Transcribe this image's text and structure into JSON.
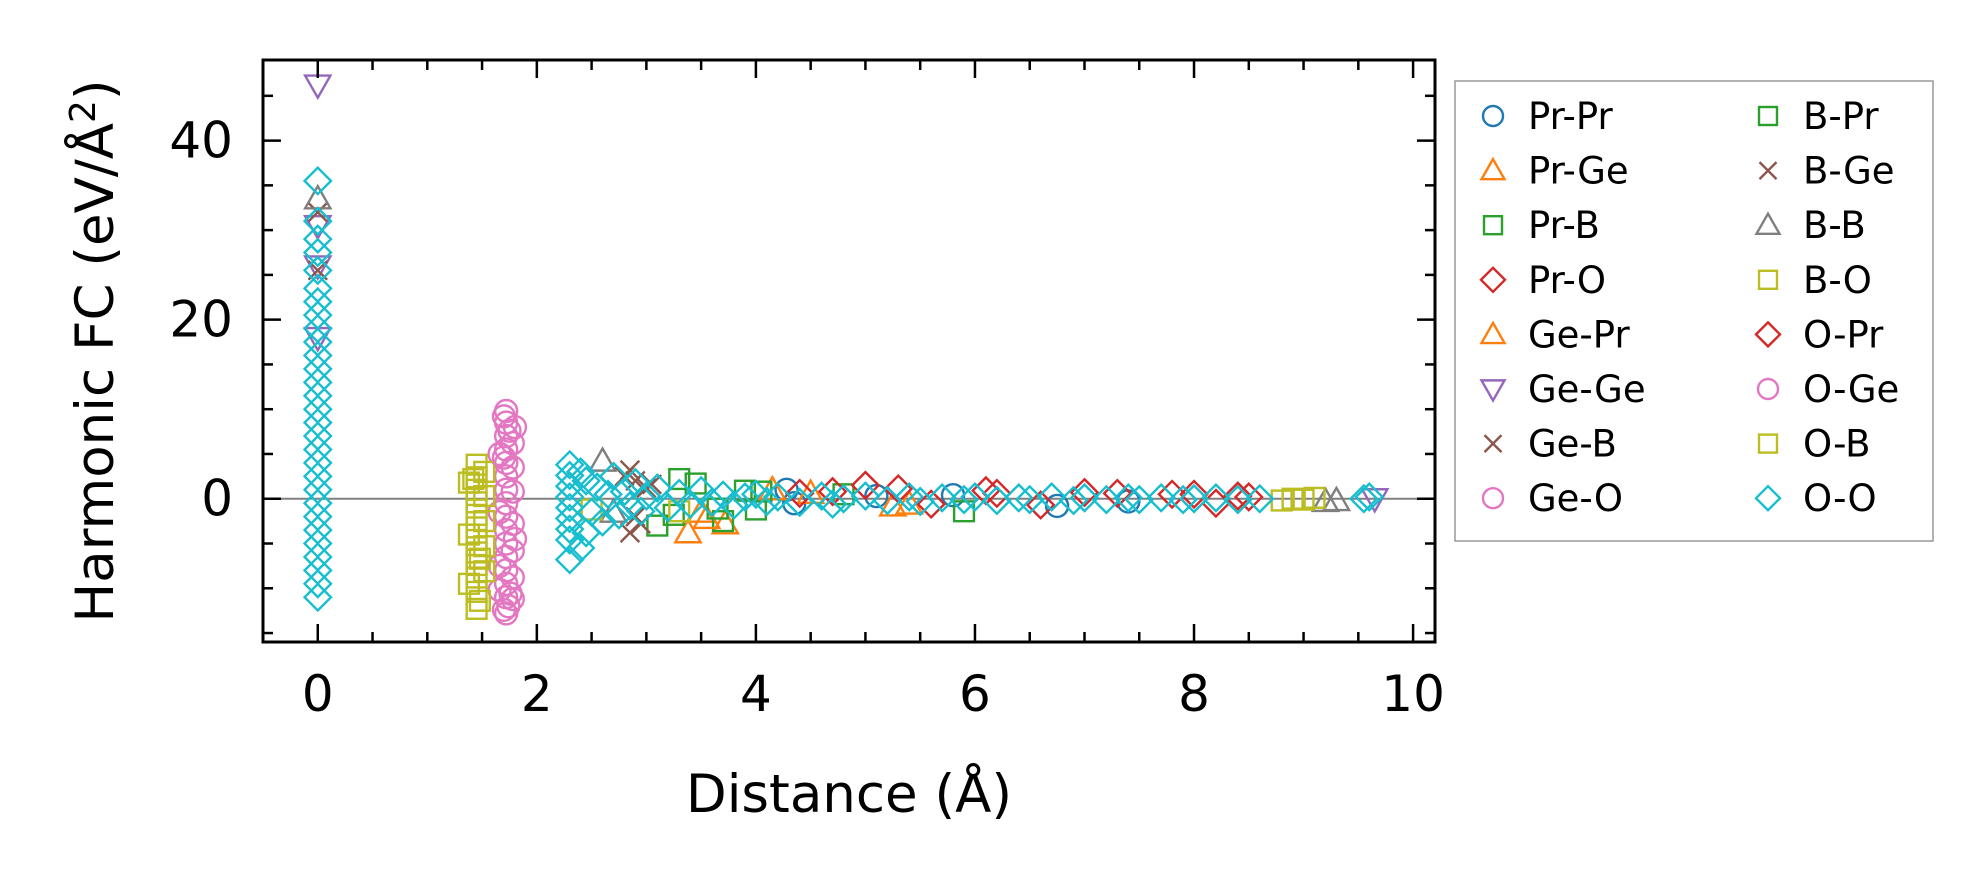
{
  "chart_data": {
    "type": "scatter",
    "xlabel": "Distance (Å)",
    "ylabel_main": "Harmonic FC (eV/Å",
    "ylabel_sup": "2",
    "ylabel_close": ")",
    "xlim": [
      -0.5,
      10.2
    ],
    "ylim": [
      -16,
      49
    ],
    "xticks": [
      0,
      2,
      4,
      6,
      8,
      10
    ],
    "yticks": [
      0,
      20,
      40
    ],
    "xtick_labels": [
      "0",
      "2",
      "4",
      "6",
      "8",
      "10"
    ],
    "ytick_labels": [
      "0",
      "20",
      "40"
    ],
    "x_minor_step": 0.5,
    "y_minor_step": 5,
    "grid": false,
    "zero_line": true,
    "legend_position": "outside-right",
    "series": [
      {
        "name": "Pr-Pr",
        "marker": "circle",
        "color": "#1f77b4",
        "points": [
          [
            4.28,
            1.0
          ],
          [
            4.35,
            -0.5
          ],
          [
            5.1,
            0.3
          ],
          [
            6.75,
            -0.8
          ],
          [
            5.8,
            0.4
          ],
          [
            7.4,
            -0.3
          ]
        ]
      },
      {
        "name": "Pr-Ge",
        "marker": "triangle-up",
        "color": "#ff7f0e",
        "points": [
          [
            3.38,
            -3.8
          ],
          [
            3.72,
            -2.8
          ],
          [
            3.5,
            -1.5
          ],
          [
            4.5,
            0.6
          ],
          [
            5.4,
            -0.6
          ]
        ]
      },
      {
        "name": "Pr-B",
        "marker": "square",
        "color": "#2ca02c",
        "points": [
          [
            3.1,
            -3.0
          ],
          [
            3.3,
            2.2
          ],
          [
            3.7,
            -2.5
          ],
          [
            3.9,
            0.9
          ],
          [
            4.0,
            -1.2
          ],
          [
            5.9,
            -1.4
          ],
          [
            4.8,
            0.5
          ]
        ]
      },
      {
        "name": "Pr-O",
        "marker": "diamond",
        "color": "#d62728",
        "points": [
          [
            4.4,
            0.6
          ],
          [
            5.0,
            1.5
          ],
          [
            5.6,
            -0.6
          ],
          [
            6.2,
            0.6
          ],
          [
            7.0,
            0.7
          ],
          [
            7.8,
            0.5
          ],
          [
            8.2,
            -0.5
          ],
          [
            8.5,
            0.2
          ]
        ]
      },
      {
        "name": "Ge-Pr",
        "marker": "triangle-up",
        "color": "#ff7f0e",
        "points": [
          [
            3.55,
            -2.2
          ],
          [
            4.15,
            1.0
          ],
          [
            5.25,
            -0.8
          ]
        ]
      },
      {
        "name": "Ge-Ge",
        "marker": "triangle-down",
        "color": "#9467bd",
        "points": [
          [
            0,
            46.2
          ],
          [
            0,
            30.5
          ],
          [
            0,
            26.0
          ],
          [
            0,
            18.0
          ],
          [
            9.65,
            0.0
          ]
        ]
      },
      {
        "name": "Ge-B",
        "marker": "x",
        "color": "#8c564b",
        "points": [
          [
            0,
            32.0
          ],
          [
            0,
            25.5
          ],
          [
            2.85,
            3.2
          ],
          [
            2.85,
            -3.8
          ],
          [
            2.9,
            -2.0
          ],
          [
            2.9,
            2.0
          ],
          [
            3.05,
            1.6
          ]
        ]
      },
      {
        "name": "Ge-O",
        "marker": "circle",
        "color": "#e377c2",
        "points": [
          [
            1.72,
            9.8
          ],
          [
            1.72,
            8.5
          ],
          [
            1.72,
            7.0
          ],
          [
            1.72,
            5.5
          ],
          [
            1.72,
            4.0
          ],
          [
            1.72,
            2.5
          ],
          [
            1.72,
            1.0
          ],
          [
            1.72,
            -0.5
          ],
          [
            1.72,
            -2.0
          ],
          [
            1.72,
            -3.5
          ],
          [
            1.72,
            -5.0
          ],
          [
            1.72,
            -6.5
          ],
          [
            1.72,
            -8.0
          ],
          [
            1.72,
            -9.5
          ],
          [
            1.72,
            -11.0
          ],
          [
            1.72,
            -12.8
          ],
          [
            1.78,
            6.2
          ],
          [
            1.78,
            3.5
          ],
          [
            1.78,
            0.8
          ],
          [
            1.78,
            -2.8
          ],
          [
            1.78,
            -5.8
          ],
          [
            1.78,
            -8.8
          ],
          [
            1.78,
            -11.2
          ],
          [
            1.66,
            5.0
          ],
          [
            1.66,
            -1.5
          ],
          [
            1.66,
            -7.5
          ],
          [
            1.66,
            -10.2
          ],
          [
            1.8,
            8.0
          ],
          [
            1.8,
            -4.5
          ],
          [
            1.74,
            -12.0
          ]
        ]
      },
      {
        "name": "B-Pr",
        "marker": "square",
        "color": "#2ca02c",
        "points": [
          [
            3.25,
            -1.8
          ],
          [
            3.45,
            1.7
          ],
          [
            3.65,
            -1.1
          ],
          [
            4.05,
            0.8
          ]
        ]
      },
      {
        "name": "B-Ge",
        "marker": "x",
        "color": "#8c564b",
        "points": [
          [
            2.8,
            2.5
          ],
          [
            2.95,
            -2.8
          ],
          [
            3.0,
            1.2
          ]
        ]
      },
      {
        "name": "B-B",
        "marker": "triangle-up",
        "color": "#7f7f7f",
        "points": [
          [
            0,
            33.5
          ],
          [
            2.6,
            4.2
          ],
          [
            2.7,
            -1.5
          ],
          [
            9.2,
            -0.3
          ],
          [
            9.3,
            -0.2
          ]
        ]
      },
      {
        "name": "B-O",
        "marker": "square",
        "color": "#bcbd22",
        "points": [
          [
            1.45,
            3.8
          ],
          [
            1.45,
            2.4
          ],
          [
            1.45,
            1.0
          ],
          [
            1.45,
            -0.4
          ],
          [
            1.45,
            -1.8
          ],
          [
            1.45,
            -3.2
          ],
          [
            1.45,
            -4.6
          ],
          [
            1.45,
            -6.0
          ],
          [
            1.45,
            -7.4
          ],
          [
            1.45,
            -8.8
          ],
          [
            1.45,
            -10.4
          ],
          [
            1.45,
            -12.3
          ],
          [
            1.52,
            3.0
          ],
          [
            1.52,
            0.3
          ],
          [
            1.52,
            -2.5
          ],
          [
            1.52,
            -5.3
          ],
          [
            1.52,
            -8.1
          ],
          [
            1.38,
            1.8
          ],
          [
            1.38,
            -4.0
          ],
          [
            1.38,
            -9.5
          ],
          [
            8.8,
            -0.2
          ],
          [
            8.9,
            0.0
          ],
          [
            9.0,
            -0.1
          ],
          [
            9.1,
            0.1
          ]
        ]
      },
      {
        "name": "O-Pr",
        "marker": "diamond",
        "color": "#d62728",
        "points": [
          [
            4.7,
            0.8
          ],
          [
            5.3,
            1.1
          ],
          [
            6.1,
            0.9
          ],
          [
            6.6,
            -0.7
          ],
          [
            7.3,
            0.6
          ],
          [
            8.0,
            0.5
          ],
          [
            8.4,
            0.3
          ]
        ]
      },
      {
        "name": "O-Ge",
        "marker": "circle",
        "color": "#e377c2",
        "points": [
          [
            1.7,
            9.2
          ],
          [
            1.75,
            7.6
          ],
          [
            1.7,
            -12.4
          ],
          [
            1.76,
            -10.6
          ],
          [
            1.7,
            4.6
          ]
        ]
      },
      {
        "name": "O-B",
        "marker": "square",
        "color": "#bcbd22",
        "points": [
          [
            1.42,
            2.2
          ],
          [
            1.48,
            -6.7
          ],
          [
            1.48,
            -11.4
          ],
          [
            2.5,
            -1.2
          ],
          [
            3.3,
            -1.4
          ]
        ]
      },
      {
        "name": "O-O",
        "marker": "diamond",
        "color": "#17becf",
        "points": [
          [
            0,
            35.5
          ],
          [
            0,
            31.0
          ],
          [
            0,
            29.0
          ],
          [
            0,
            27.5
          ],
          [
            0,
            25.5
          ],
          [
            0,
            23.5
          ],
          [
            0,
            22.0
          ],
          [
            0,
            20.5
          ],
          [
            0,
            19.0
          ],
          [
            0,
            17.5
          ],
          [
            0,
            16.0
          ],
          [
            0,
            14.5
          ],
          [
            0,
            13.0
          ],
          [
            0,
            11.5
          ],
          [
            0,
            10.0
          ],
          [
            0,
            8.5
          ],
          [
            0,
            7.0
          ],
          [
            0,
            5.5
          ],
          [
            0,
            4.0
          ],
          [
            0,
            2.5
          ],
          [
            0,
            1.0
          ],
          [
            0,
            -0.5
          ],
          [
            0,
            -2.0
          ],
          [
            0,
            -3.5
          ],
          [
            0,
            -5.0
          ],
          [
            0,
            -6.5
          ],
          [
            0,
            -8.0
          ],
          [
            0,
            -9.5
          ],
          [
            0,
            -11.0
          ],
          [
            2.3,
            3.8
          ],
          [
            2.3,
            2.6
          ],
          [
            2.3,
            1.4
          ],
          [
            2.3,
            0.2
          ],
          [
            2.3,
            -1.0
          ],
          [
            2.3,
            -2.2
          ],
          [
            2.3,
            -3.4
          ],
          [
            2.3,
            -4.6
          ],
          [
            2.3,
            -6.8
          ],
          [
            2.4,
            3.0
          ],
          [
            2.4,
            -5.5
          ],
          [
            2.45,
            2.0
          ],
          [
            2.45,
            -3.8
          ],
          [
            2.5,
            -1.5
          ],
          [
            2.55,
            1.3
          ],
          [
            2.6,
            -2.6
          ],
          [
            2.65,
            0.5
          ],
          [
            2.7,
            2.5
          ],
          [
            2.75,
            -1.8
          ],
          [
            2.8,
            0.8
          ],
          [
            2.85,
            -0.8
          ],
          [
            2.9,
            1.8
          ],
          [
            2.95,
            -1.4
          ],
          [
            3.0,
            0.3
          ],
          [
            3.1,
            1.2
          ],
          [
            3.2,
            -1.0
          ],
          [
            3.3,
            0.6
          ],
          [
            3.4,
            -0.6
          ],
          [
            3.5,
            0.9
          ],
          [
            3.6,
            -0.4
          ],
          [
            3.7,
            0.4
          ],
          [
            3.8,
            -0.7
          ],
          [
            3.9,
            0.2
          ],
          [
            4.0,
            0.5
          ],
          [
            4.1,
            -0.3
          ],
          [
            4.2,
            0.2
          ],
          [
            4.4,
            -0.4
          ],
          [
            4.6,
            0.3
          ],
          [
            4.7,
            -0.6
          ],
          [
            4.8,
            0.0
          ],
          [
            5.0,
            0.3
          ],
          [
            5.2,
            -0.2
          ],
          [
            5.4,
            0.2
          ],
          [
            5.5,
            -0.3
          ],
          [
            5.7,
            0.1
          ],
          [
            5.9,
            -0.1
          ],
          [
            6.0,
            0.2
          ],
          [
            6.2,
            -0.2
          ],
          [
            6.4,
            0.1
          ],
          [
            6.5,
            -0.1
          ],
          [
            6.7,
            0.2
          ],
          [
            6.9,
            -0.2
          ],
          [
            7.0,
            0.1
          ],
          [
            7.2,
            -0.1
          ],
          [
            7.4,
            0.1
          ],
          [
            7.5,
            -0.1
          ],
          [
            7.7,
            0.1
          ],
          [
            7.9,
            -0.1
          ],
          [
            8.0,
            0.0
          ],
          [
            8.2,
            0.1
          ],
          [
            8.4,
            -0.1
          ],
          [
            8.6,
            0.0
          ],
          [
            9.55,
            0.0
          ],
          [
            9.6,
            0.2
          ]
        ]
      }
    ]
  }
}
